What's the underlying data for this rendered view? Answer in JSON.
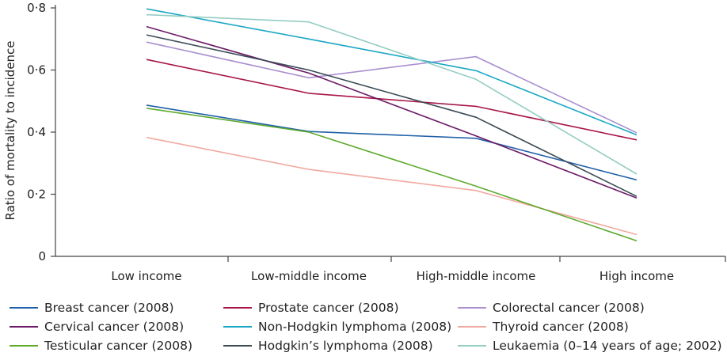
{
  "chart_data": {
    "type": "line",
    "title": "",
    "xlabel": "",
    "ylabel": "Ratio of mortality to incidence",
    "categories": [
      "Low income",
      "Low-middle income",
      "High-middle income",
      "High income"
    ],
    "ylim": [
      0,
      0.8
    ],
    "yticks": [
      {
        "value": 0,
        "label": "0"
      },
      {
        "value": 0.2,
        "label": "0·2"
      },
      {
        "value": 0.4,
        "label": "0·4"
      },
      {
        "value": 0.6,
        "label": "0·6"
      },
      {
        "value": 0.8,
        "label": "0·8"
      }
    ],
    "grid": false,
    "legend_position": "bottom",
    "series": [
      {
        "name": "Breast cancer (2008)",
        "color": "#1f5fa8",
        "values": [
          0.487,
          0.402,
          0.38,
          0.246
        ]
      },
      {
        "name": "Prostate cancer (2008)",
        "color": "#a8154a",
        "values": [
          0.634,
          0.525,
          0.483,
          0.375
        ]
      },
      {
        "name": "Colorectal cancer (2008)",
        "color": "#a98fd0",
        "values": [
          0.69,
          0.575,
          0.643,
          0.398
        ]
      },
      {
        "name": "Cervical cancer (2008)",
        "color": "#6b1a66",
        "values": [
          0.74,
          0.59,
          0.388,
          0.188
        ]
      },
      {
        "name": "Non-Hodgkin lymphoma (2008)",
        "color": "#1aa7c4",
        "values": [
          0.797,
          0.7,
          0.598,
          0.391
        ]
      },
      {
        "name": "Thyroid cancer (2008)",
        "color": "#f0a9a0",
        "values": [
          0.383,
          0.28,
          0.212,
          0.07
        ]
      },
      {
        "name": "Testicular cancer (2008)",
        "color": "#5daa2d",
        "values": [
          0.477,
          0.4,
          0.226,
          0.05
        ]
      },
      {
        "name": "Hodgkin’s lymphoma (2008)",
        "color": "#3b4b55",
        "values": [
          0.713,
          0.6,
          0.448,
          0.193
        ]
      },
      {
        "name": "Leukaemia (0–14 years of age; 2002)",
        "color": "#94cdc3",
        "values": [
          0.778,
          0.755,
          0.57,
          0.265
        ]
      }
    ]
  }
}
